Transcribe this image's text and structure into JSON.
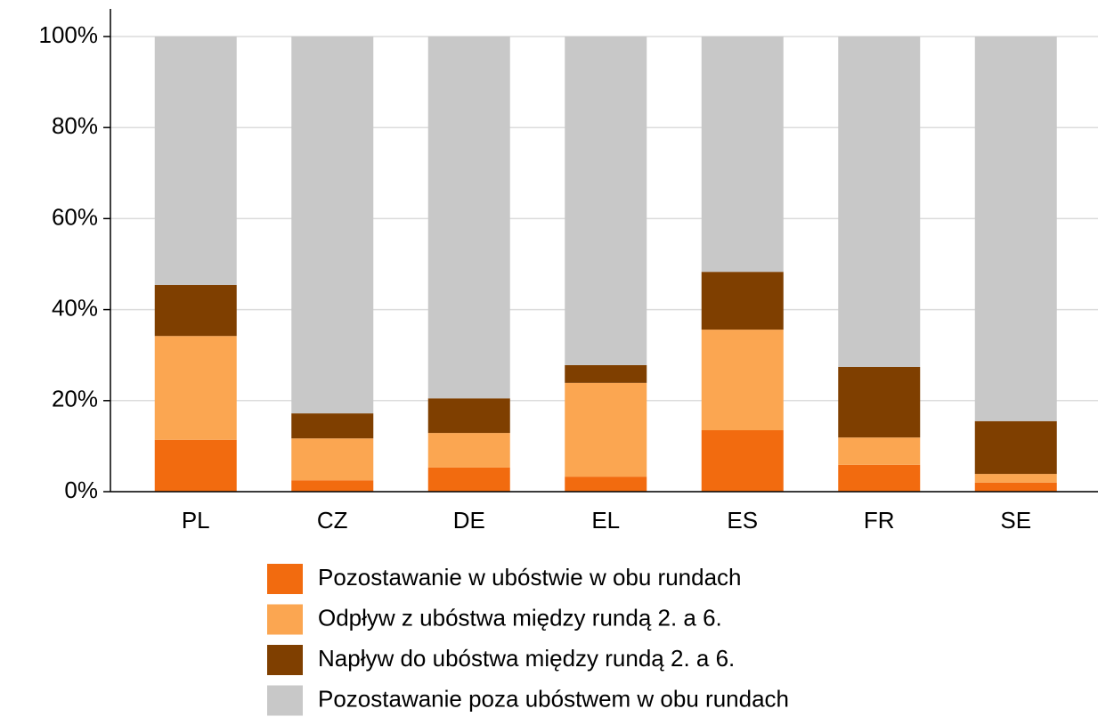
{
  "chart_data": {
    "type": "stacked_bar",
    "categories": [
      "PL",
      "CZ",
      "DE",
      "EL",
      "ES",
      "FR",
      "SE"
    ],
    "series": [
      {
        "name": "Pozostawanie w ubóstwie w obu rundach",
        "color": "#f26b0f",
        "values": [
          11.4,
          2.5,
          5.3,
          3.3,
          13.5,
          5.9,
          2.0
        ]
      },
      {
        "name": "Odpływ z ubóstwa między rundą 2. a 6.",
        "color": "#fba651",
        "values": [
          22.8,
          9.2,
          7.6,
          20.6,
          22.1,
          6.0,
          1.9
        ]
      },
      {
        "name": "Napływ do ubóstwa między rundą 2. a 6.",
        "color": "#7f3f00",
        "values": [
          11.2,
          5.5,
          7.6,
          3.9,
          12.7,
          15.5,
          11.6
        ]
      },
      {
        "name": "Pozostawanie poza ubóstwem w obu rundach",
        "color": "#c8c8c8",
        "values": [
          54.6,
          82.8,
          79.5,
          72.2,
          51.7,
          72.6,
          84.5
        ]
      }
    ],
    "ylim": [
      0,
      100
    ],
    "yticks": [
      {
        "value": 0,
        "label": "0%"
      },
      {
        "value": 20,
        "label": "20%"
      },
      {
        "value": 40,
        "label": "40%"
      },
      {
        "value": 60,
        "label": "60%"
      },
      {
        "value": 80,
        "label": "80%"
      },
      {
        "value": 100,
        "label": "100%"
      }
    ],
    "grid": true,
    "legend": "bottom"
  }
}
